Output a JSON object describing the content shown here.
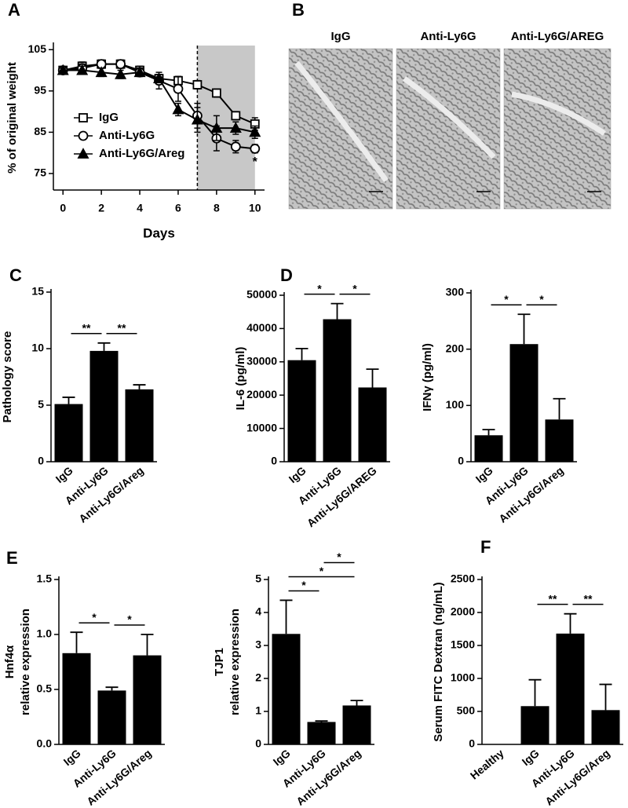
{
  "chart_data": [
    {
      "type": "line",
      "panel_label": "A",
      "xlabel": "Days",
      "ylabel": "% of original weight",
      "x": [
        0,
        1,
        2,
        3,
        4,
        5,
        6,
        7,
        8,
        9,
        10
      ],
      "xlim": [
        -0.5,
        10.5
      ],
      "xticks": [
        0,
        2,
        4,
        6,
        8,
        10
      ],
      "ylim": [
        71,
        106
      ],
      "yticks": [
        75,
        85,
        95,
        105
      ],
      "shade": [
        7,
        10
      ],
      "vline": 7,
      "legend": "lower left",
      "annotation": "*",
      "series": [
        {
          "name": "IgG",
          "color": "#000000",
          "marker": "square",
          "values": [
            100,
            101,
            101.5,
            101.5,
            100,
            98,
            97.5,
            96.5,
            94.5,
            89,
            87
          ],
          "errors": [
            0.5,
            1,
            1,
            1,
            1,
            1,
            1,
            1,
            1,
            1,
            1.5
          ]
        },
        {
          "name": "Anti-Ly6G",
          "color": "#000000",
          "marker": "circle",
          "values": [
            100,
            100.5,
            101.5,
            101.5,
            99.5,
            97.5,
            95.5,
            89,
            83.5,
            81.5,
            81
          ],
          "errors": [
            0.5,
            1,
            1,
            1,
            1,
            2,
            3,
            3,
            3,
            1.5,
            1
          ]
        },
        {
          "name": "Anti-Ly6G/Areg",
          "color": "#000000",
          "marker": "triangle",
          "values": [
            100,
            100,
            99.5,
            99,
            99.5,
            98,
            90.5,
            88,
            86,
            86,
            85
          ],
          "errors": [
            0.5,
            1,
            1,
            1,
            1,
            1,
            1.5,
            3,
            3,
            1.5,
            1.5
          ]
        }
      ]
    },
    {
      "type": "bar",
      "panel_label": "C",
      "ylabel": "Pathology score",
      "color": "#000000",
      "categories": [
        "IgG",
        "Anti-Ly6G",
        "Anti-Ly6G/Areg"
      ],
      "values": [
        5.1,
        9.8,
        6.4
      ],
      "errors": [
        0.6,
        0.7,
        0.4
      ],
      "ylim": [
        0,
        15
      ],
      "yticks": [
        0,
        5,
        10,
        15
      ],
      "significance": [
        {
          "from": 0,
          "to": 1,
          "label": "**"
        },
        {
          "from": 1,
          "to": 2,
          "label": "**"
        }
      ]
    },
    {
      "type": "bar",
      "panel_label": "D",
      "ylabel": "IL-6 (pg/ml)",
      "color": "#000000",
      "categories": [
        "IgG",
        "Anti-Ly6G",
        "Anti-Ly6G/AREG"
      ],
      "values": [
        30500,
        42800,
        22300
      ],
      "errors": [
        3500,
        4700,
        5500
      ],
      "ylim": [
        0,
        50000
      ],
      "yticks": [
        0,
        10000,
        20000,
        30000,
        40000,
        50000
      ],
      "significance": [
        {
          "from": 0,
          "to": 1,
          "label": "*"
        },
        {
          "from": 1,
          "to": 2,
          "label": "*"
        }
      ]
    },
    {
      "type": "bar",
      "ylabel": "IFNγ (pg/ml)",
      "color": "#000000",
      "categories": [
        "IgG",
        "Anti-Ly6G",
        "Anti-Ly6G/Areg"
      ],
      "values": [
        47,
        209,
        75
      ],
      "errors": [
        10,
        53,
        37
      ],
      "ylim": [
        0,
        300
      ],
      "yticks": [
        0,
        100,
        200,
        300
      ],
      "significance": [
        {
          "from": 0,
          "to": 1,
          "label": "*"
        },
        {
          "from": 1,
          "to": 2,
          "label": "*"
        }
      ]
    },
    {
      "type": "bar",
      "panel_label": "E",
      "ylabel": [
        "Hnf4α",
        "relative expression"
      ],
      "color": "#000000",
      "categories": [
        "IgG",
        "Anti-Ly6G",
        "Anti-Ly6G/Areg"
      ],
      "values": [
        0.83,
        0.49,
        0.81
      ],
      "errors": [
        0.19,
        0.03,
        0.19
      ],
      "ylim": [
        0,
        1.5
      ],
      "yticks": [
        {
          "value": 0,
          "label": "0.0"
        },
        0.5,
        {
          "value": 1,
          "label": "1.0"
        },
        1.5
      ],
      "significance": [
        {
          "from": 0,
          "to": 1,
          "label": "*"
        },
        {
          "from": 1,
          "to": 2,
          "label": "*"
        }
      ]
    },
    {
      "type": "bar",
      "ylabel": [
        "TJP1",
        "relative expression"
      ],
      "color": "#000000",
      "categories": [
        "IgG",
        "Anti-Ly6G",
        "Anti-Ly6G/Areg"
      ],
      "values": [
        3.35,
        0.68,
        1.18
      ],
      "errors": [
        1.02,
        0.03,
        0.15
      ],
      "ylim": [
        0,
        5
      ],
      "yticks": [
        0,
        1,
        2,
        3,
        4,
        5
      ],
      "significance": [
        {
          "from": 0,
          "to": 1,
          "label": "*"
        },
        {
          "from": 0,
          "to": 2,
          "label": "*"
        },
        {
          "from": 1,
          "to": 2,
          "label": "*"
        }
      ]
    },
    {
      "type": "bar",
      "panel_label": "F",
      "ylabel": "Serum FITC Dextran (ng/mL)",
      "color": "#000000",
      "categories": [
        "Healthy",
        "IgG",
        "Anti-Ly6G",
        "Anti-Ly6G/Areg"
      ],
      "values": [
        0,
        580,
        1680,
        520
      ],
      "errors": [
        null,
        400,
        300,
        390
      ],
      "ylim": [
        0,
        2500
      ],
      "yticks": [
        0,
        500,
        1000,
        1500,
        2000,
        2500
      ],
      "significance": [
        {
          "from": 1,
          "to": 2,
          "label": "**"
        },
        {
          "from": 2,
          "to": 3,
          "label": "**"
        }
      ]
    }
  ],
  "images": {
    "panel_label": "B",
    "labels": [
      "IgG",
      "Anti-Ly6G",
      "Anti-Ly6G/AREG"
    ]
  }
}
